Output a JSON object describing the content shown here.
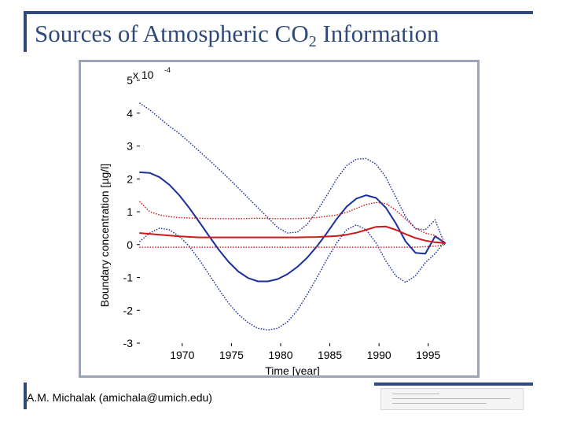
{
  "slide": {
    "title_main": "Sources of Atmospheric CO",
    "title_sub": "2",
    "title_tail": " Information",
    "footer": "A.M. Michalak (amichala@umich.edu)"
  },
  "colors": {
    "title": "#2e4a7a",
    "blue": "#1a2fa0",
    "red": "#d01818"
  },
  "chart_data": {
    "type": "line",
    "title": "",
    "xlabel": "Time [year]",
    "ylabel": "Boundary concentration [µg/l]",
    "exponent_label": "x 10",
    "exponent_power": "-4",
    "xlim": [
      1965.7,
      1996.7
    ],
    "ylim": [
      -3,
      5
    ],
    "xticks": [
      1970,
      1975,
      1980,
      1985,
      1990,
      1995
    ],
    "yticks": [
      -3,
      -2,
      -1,
      0,
      1,
      2,
      3,
      4,
      5
    ],
    "series": [
      {
        "name": "Blue estimate",
        "color": "#1a2fa0",
        "style": "solid",
        "x": [
          1965.7,
          1966.7,
          1967.7,
          1968.7,
          1969.7,
          1970.7,
          1971.7,
          1972.7,
          1973.7,
          1974.7,
          1975.7,
          1976.7,
          1977.7,
          1978.7,
          1979.7,
          1980.7,
          1981.7,
          1982.7,
          1983.7,
          1984.7,
          1985.7,
          1986.7,
          1987.7,
          1988.7,
          1989.7,
          1990.7,
          1991.7,
          1992.7,
          1993.7,
          1994.7,
          1995.7,
          1996.7
        ],
        "y": [
          2.2,
          2.18,
          2.05,
          1.82,
          1.5,
          1.12,
          0.7,
          0.27,
          -0.15,
          -0.52,
          -0.82,
          -1.02,
          -1.12,
          -1.12,
          -1.05,
          -0.9,
          -0.68,
          -0.4,
          -0.05,
          0.35,
          0.78,
          1.15,
          1.4,
          1.5,
          1.42,
          1.12,
          0.65,
          0.1,
          -0.25,
          -0.28,
          0.25,
          0.05
        ]
      },
      {
        "name": "Blue upper bound",
        "color": "#1a2fa0",
        "style": "dotted",
        "x": [
          1965.7,
          1966.7,
          1967.7,
          1968.7,
          1969.7,
          1970.7,
          1971.7,
          1972.7,
          1973.7,
          1974.7,
          1975.7,
          1976.7,
          1977.7,
          1978.7,
          1979.7,
          1980.7,
          1981.7,
          1982.7,
          1983.7,
          1984.7,
          1985.7,
          1986.7,
          1987.7,
          1988.7,
          1989.7,
          1990.7,
          1991.7,
          1992.7,
          1993.7,
          1994.7,
          1995.7,
          1996.7
        ],
        "y": [
          4.3,
          4.1,
          3.85,
          3.6,
          3.38,
          3.12,
          2.85,
          2.58,
          2.3,
          2.02,
          1.72,
          1.42,
          1.12,
          0.82,
          0.52,
          0.35,
          0.38,
          0.62,
          1.02,
          1.5,
          2.0,
          2.4,
          2.6,
          2.62,
          2.45,
          2.05,
          1.45,
          0.85,
          0.48,
          0.45,
          0.75,
          0.0
        ]
      },
      {
        "name": "Blue lower bound",
        "color": "#1a2fa0",
        "style": "dotted",
        "x": [
          1965.7,
          1966.7,
          1967.7,
          1968.7,
          1969.7,
          1970.7,
          1971.7,
          1972.7,
          1973.7,
          1974.7,
          1975.7,
          1976.7,
          1977.7,
          1978.7,
          1979.7,
          1980.7,
          1981.7,
          1982.7,
          1983.7,
          1984.7,
          1985.7,
          1986.7,
          1987.7,
          1988.7,
          1989.7,
          1990.7,
          1991.7,
          1992.7,
          1993.7,
          1994.7,
          1995.7,
          1996.7
        ],
        "y": [
          0.1,
          0.35,
          0.5,
          0.45,
          0.25,
          -0.05,
          -0.45,
          -0.9,
          -1.35,
          -1.78,
          -2.12,
          -2.38,
          -2.55,
          -2.6,
          -2.55,
          -2.35,
          -2.0,
          -1.52,
          -1.0,
          -0.45,
          0.05,
          0.45,
          0.6,
          0.45,
          0.05,
          -0.5,
          -0.95,
          -1.15,
          -0.95,
          -0.55,
          -0.28,
          0.1
        ]
      },
      {
        "name": "Red estimate",
        "color": "#d01818",
        "style": "solid",
        "x": [
          1965.7,
          1967.7,
          1969.7,
          1971.7,
          1973.7,
          1975.7,
          1977.7,
          1979.7,
          1981.7,
          1983.7,
          1985.7,
          1986.7,
          1987.7,
          1988.7,
          1989.7,
          1990.7,
          1991.7,
          1992.7,
          1993.7,
          1994.7,
          1995.7,
          1996.7
        ],
        "y": [
          0.35,
          0.3,
          0.25,
          0.22,
          0.22,
          0.22,
          0.22,
          0.22,
          0.22,
          0.23,
          0.26,
          0.3,
          0.36,
          0.45,
          0.54,
          0.55,
          0.45,
          0.32,
          0.2,
          0.12,
          0.07,
          0.05
        ]
      },
      {
        "name": "Red upper bound",
        "color": "#d01818",
        "style": "dotted",
        "x": [
          1965.7,
          1966.7,
          1967.7,
          1968.7,
          1969.7,
          1971.7,
          1973.7,
          1975.7,
          1977.7,
          1979.7,
          1981.7,
          1983.7,
          1985.7,
          1986.7,
          1987.7,
          1988.7,
          1989.7,
          1990.7,
          1991.7,
          1992.7,
          1993.7,
          1994.7,
          1995.7,
          1996.7
        ],
        "y": [
          1.3,
          1.0,
          0.9,
          0.85,
          0.82,
          0.8,
          0.79,
          0.79,
          0.8,
          0.79,
          0.79,
          0.82,
          0.9,
          0.98,
          1.1,
          1.22,
          1.28,
          1.25,
          1.05,
          0.78,
          0.5,
          0.35,
          0.28,
          0.05
        ]
      },
      {
        "name": "Red lower bound",
        "color": "#d01818",
        "style": "dotted",
        "x": [
          1965.7,
          1967.7,
          1969.7,
          1971.7,
          1973.7,
          1975.7,
          1977.7,
          1979.7,
          1981.7,
          1983.7,
          1985.7,
          1987.7,
          1989.7,
          1991.7,
          1993.7,
          1994.7,
          1995.7,
          1996.7
        ],
        "y": [
          -0.08,
          -0.08,
          -0.08,
          -0.08,
          -0.08,
          -0.08,
          -0.08,
          -0.08,
          -0.08,
          -0.08,
          -0.08,
          -0.08,
          -0.08,
          -0.08,
          -0.08,
          -0.06,
          -0.05,
          0.0
        ]
      }
    ]
  }
}
